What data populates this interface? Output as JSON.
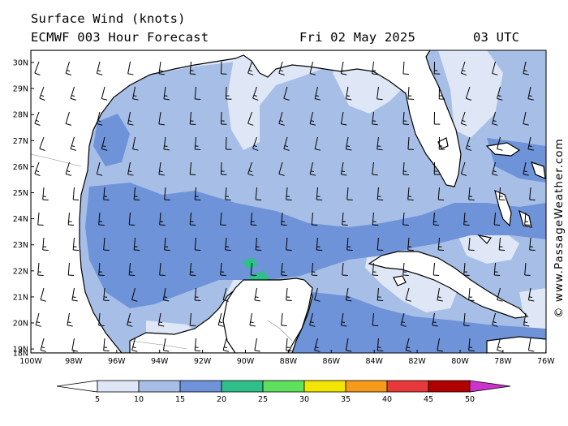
{
  "header": {
    "title": "Surface Wind (knots)",
    "model": "ECMWF 003 Hour Forecast",
    "date": "Fri 02 May 2025",
    "time": "03 UTC"
  },
  "credit": "© www.PassageWeather.com",
  "axes": {
    "lat_labels": [
      "30N",
      "29N",
      "28N",
      "27N",
      "26N",
      "25N",
      "24N",
      "23N",
      "22N",
      "21N",
      "20N",
      "19N",
      "18N"
    ],
    "lon_labels": [
      "100W",
      "98W",
      "96W",
      "94W",
      "92W",
      "90W",
      "88W",
      "86W",
      "84W",
      "82W",
      "80W",
      "78W",
      "76W"
    ]
  },
  "colorbar": {
    "labels": [
      "5",
      "10",
      "15",
      "20",
      "25",
      "30",
      "35",
      "40",
      "45",
      "50"
    ],
    "colors": [
      "#ffffff",
      "#dfe7f6",
      "#a7bfe6",
      "#6e93d8",
      "#2fbf8a",
      "#5fe05f",
      "#f2e600",
      "#f59a1a",
      "#e8393a",
      "#b00000",
      "#cc33cc"
    ]
  },
  "fields": {
    "land_color": "#ffffff",
    "weak_wind_color": "#dfe7f6",
    "moderate_wind_color": "#a7bfe6",
    "fresh_wind_color": "#6e93d8",
    "strong_wind_color": "#2fbf8a",
    "coast_color": "#000000"
  }
}
